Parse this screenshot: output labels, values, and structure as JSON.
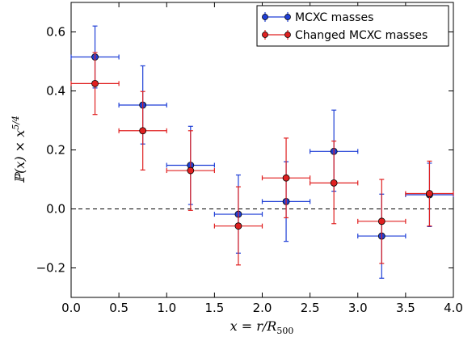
{
  "chart_data": {
    "type": "scatter",
    "xlabel": "x = r/R500",
    "ylabel": "ℙ(x) × x^5/4",
    "xlim": [
      0.0,
      4.0
    ],
    "ylim": [
      -0.3,
      0.7
    ],
    "xticks": [
      "0.0",
      "0.5",
      "1.0",
      "1.5",
      "2.0",
      "2.5",
      "3.0",
      "3.5",
      "4.0"
    ],
    "yticks": [
      "−0.2",
      "0.0",
      "0.2",
      "0.4",
      "0.6"
    ],
    "reference_line": {
      "y": 0.0,
      "style": "dashed"
    },
    "legend_position": "top-right",
    "series": [
      {
        "name": "MCXC masses",
        "color": "#1f3fd6",
        "points": [
          {
            "x": 0.25,
            "y": 0.515,
            "xerr": 0.25,
            "ylo": 0.41,
            "yhi": 0.62
          },
          {
            "x": 0.75,
            "y": 0.352,
            "xerr": 0.25,
            "ylo": 0.22,
            "yhi": 0.485
          },
          {
            "x": 1.25,
            "y": 0.148,
            "xerr": 0.25,
            "ylo": 0.015,
            "yhi": 0.28
          },
          {
            "x": 1.75,
            "y": -0.018,
            "xerr": 0.25,
            "ylo": -0.15,
            "yhi": 0.115
          },
          {
            "x": 2.25,
            "y": 0.025,
            "xerr": 0.25,
            "ylo": -0.11,
            "yhi": 0.16
          },
          {
            "x": 2.75,
            "y": 0.195,
            "xerr": 0.25,
            "ylo": 0.06,
            "yhi": 0.335
          },
          {
            "x": 3.25,
            "y": -0.092,
            "xerr": 0.25,
            "ylo": -0.235,
            "yhi": 0.05
          },
          {
            "x": 3.75,
            "y": 0.048,
            "xerr": 0.25,
            "ylo": -0.06,
            "yhi": 0.155
          }
        ]
      },
      {
        "name": "Changed MCXC masses",
        "color": "#e02020",
        "points": [
          {
            "x": 0.25,
            "y": 0.425,
            "xerr": 0.25,
            "ylo": 0.32,
            "yhi": 0.53
          },
          {
            "x": 0.75,
            "y": 0.265,
            "xerr": 0.25,
            "ylo": 0.132,
            "yhi": 0.398
          },
          {
            "x": 1.25,
            "y": 0.13,
            "xerr": 0.25,
            "ylo": -0.005,
            "yhi": 0.265
          },
          {
            "x": 1.75,
            "y": -0.058,
            "xerr": 0.25,
            "ylo": -0.19,
            "yhi": 0.075
          },
          {
            "x": 2.25,
            "y": 0.105,
            "xerr": 0.25,
            "ylo": -0.03,
            "yhi": 0.24
          },
          {
            "x": 2.75,
            "y": 0.088,
            "xerr": 0.25,
            "ylo": -0.05,
            "yhi": 0.23
          },
          {
            "x": 3.25,
            "y": -0.042,
            "xerr": 0.25,
            "ylo": -0.185,
            "yhi": 0.1
          },
          {
            "x": 3.75,
            "y": 0.052,
            "xerr": 0.25,
            "ylo": -0.058,
            "yhi": 0.162
          }
        ]
      }
    ]
  }
}
